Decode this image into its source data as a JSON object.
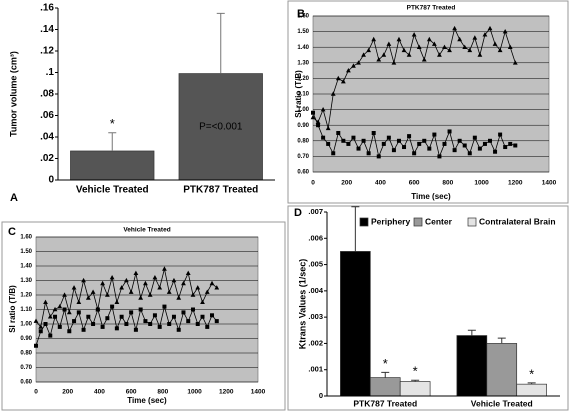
{
  "chart_data": [
    {
      "type": "bar",
      "label": "A",
      "ylabel": "Tumor volume (cm³)",
      "categories": [
        "Vehicle Treated",
        "PTK787 Treated"
      ],
      "series": [
        {
          "color": "#555555",
          "values": [
            0.027,
            0.099
          ],
          "errors": [
            0.017,
            0.056
          ]
        }
      ],
      "ylim": [
        0,
        0.16
      ],
      "yticks": [
        {
          "value": 0,
          "label": "0"
        },
        {
          "value": 0.02,
          "label": ".02"
        },
        {
          "value": 0.04,
          "label": ".04"
        },
        {
          "value": 0.06,
          "label": ".06"
        },
        {
          "value": 0.08,
          "label": ".08"
        },
        {
          "value": 0.1,
          "label": ".1"
        },
        {
          "value": 0.12,
          "label": ".12"
        },
        {
          "value": 0.14,
          "label": ".14"
        },
        {
          "value": 0.16,
          "label": ".16"
        }
      ],
      "annotations": [
        "*",
        "P=<0.001"
      ],
      "grid": false
    },
    {
      "type": "line",
      "label": "B",
      "title": "PTK787 Treated",
      "xlabel": "Time (sec)",
      "ylabel": "SI ratio (T/B)",
      "x": [
        0,
        30,
        60,
        90,
        120,
        150,
        180,
        210,
        240,
        270,
        300,
        330,
        360,
        390,
        420,
        450,
        480,
        510,
        540,
        570,
        600,
        630,
        660,
        690,
        720,
        750,
        780,
        810,
        840,
        870,
        900,
        930,
        960,
        990,
        1020,
        1050,
        1080,
        1110,
        1140,
        1170,
        1200
      ],
      "series": [
        {
          "color": "#000000",
          "marker": "triangle",
          "values": [
            0.95,
            0.92,
            1.0,
            0.88,
            1.1,
            1.2,
            1.18,
            1.25,
            1.28,
            1.3,
            1.35,
            1.38,
            1.45,
            1.32,
            1.35,
            1.42,
            1.3,
            1.45,
            1.38,
            1.35,
            1.48,
            1.4,
            1.32,
            1.45,
            1.42,
            1.35,
            1.4,
            1.38,
            1.52,
            1.45,
            1.4,
            1.38,
            1.46,
            1.35,
            1.48,
            1.52,
            1.42,
            1.38,
            1.5,
            1.4,
            1.3
          ]
        },
        {
          "color": "#000000",
          "marker": "square",
          "values": [
            0.98,
            0.9,
            0.82,
            0.78,
            0.72,
            0.85,
            0.8,
            0.78,
            0.82,
            0.75,
            0.8,
            0.72,
            0.85,
            0.7,
            0.78,
            0.82,
            0.74,
            0.8,
            0.76,
            0.83,
            0.72,
            0.78,
            0.8,
            0.75,
            0.84,
            0.7,
            0.78,
            0.86,
            0.74,
            0.8,
            0.77,
            0.72,
            0.82,
            0.75,
            0.78,
            0.8,
            0.73,
            0.84,
            0.76,
            0.78,
            0.77
          ]
        }
      ],
      "xlim": [
        0,
        1400
      ],
      "xticks": [
        0,
        200,
        400,
        600,
        800,
        1000,
        1200,
        1400
      ],
      "ylim": [
        0.6,
        1.6
      ],
      "yticks": [
        {
          "value": 0.6,
          "label": "0.60"
        },
        {
          "value": 0.7,
          "label": "0.70"
        },
        {
          "value": 0.8,
          "label": "0.80"
        },
        {
          "value": 0.9,
          "label": "0.90"
        },
        {
          "value": 1.0,
          "label": "1.00"
        },
        {
          "value": 1.1,
          "label": "1.10"
        },
        {
          "value": 1.2,
          "label": "1.20"
        },
        {
          "value": 1.3,
          "label": "1.30"
        },
        {
          "value": 1.4,
          "label": "1.40"
        },
        {
          "value": 1.5,
          "label": "1.50"
        },
        {
          "value": 1.6,
          "label": "1.60"
        }
      ],
      "grid": true,
      "background": "#c0c0c0"
    },
    {
      "type": "line",
      "label": "C",
      "title": "Vehicle Treated",
      "xlabel": "Time (sec)",
      "ylabel": "SI ratio (T/B)",
      "x": [
        0,
        30,
        60,
        90,
        120,
        150,
        180,
        210,
        240,
        270,
        300,
        330,
        360,
        390,
        420,
        450,
        480,
        510,
        540,
        570,
        600,
        630,
        660,
        690,
        720,
        750,
        780,
        810,
        840,
        870,
        900,
        930,
        960,
        990,
        1020,
        1050,
        1080,
        1110,
        1140
      ],
      "series": [
        {
          "color": "#000000",
          "marker": "triangle",
          "values": [
            1.02,
            0.98,
            1.15,
            1.05,
            1.1,
            1.12,
            1.2,
            1.08,
            1.25,
            1.15,
            1.3,
            1.18,
            1.22,
            1.1,
            1.28,
            1.2,
            1.32,
            1.15,
            1.25,
            1.3,
            1.22,
            1.35,
            1.18,
            1.28,
            1.2,
            1.32,
            1.25,
            1.38,
            1.22,
            1.3,
            1.18,
            1.28,
            1.35,
            1.2,
            1.25,
            1.15,
            1.22,
            1.28,
            1.25
          ]
        },
        {
          "color": "#000000",
          "marker": "square",
          "values": [
            0.85,
            0.95,
            1.0,
            0.92,
            1.05,
            0.98,
            1.1,
            0.95,
            1.02,
            1.08,
            0.96,
            1.05,
            1.0,
            1.1,
            0.98,
            1.04,
            1.12,
            0.97,
            1.05,
            1.0,
            1.08,
            0.96,
            1.1,
            1.02,
            1.0,
            1.06,
            0.98,
            1.12,
            1.0,
            1.05,
            0.96,
            1.08,
            1.02,
            1.1,
            1.0,
            1.05,
            0.98,
            1.06,
            1.02
          ]
        }
      ],
      "xlim": [
        0,
        1400
      ],
      "xticks": [
        0,
        200,
        400,
        600,
        800,
        1000,
        1200,
        1400
      ],
      "ylim": [
        0.6,
        1.6
      ],
      "yticks": [
        {
          "value": 0.6,
          "label": "0.60"
        },
        {
          "value": 0.7,
          "label": "0.70"
        },
        {
          "value": 0.8,
          "label": "0.80"
        },
        {
          "value": 0.9,
          "label": "0.90"
        },
        {
          "value": 1.0,
          "label": "1.00"
        },
        {
          "value": 1.1,
          "label": "1.10"
        },
        {
          "value": 1.2,
          "label": "1.20"
        },
        {
          "value": 1.3,
          "label": "1.30"
        },
        {
          "value": 1.4,
          "label": "1.40"
        },
        {
          "value": 1.5,
          "label": "1.50"
        },
        {
          "value": 1.6,
          "label": "1.60"
        }
      ],
      "grid": true,
      "background": "#c0c0c0"
    },
    {
      "type": "bar",
      "label": "D",
      "ylabel": "Ktrans Values (1/sec)",
      "categories": [
        "PTK787 Treated",
        "Vehicle Treated"
      ],
      "series": [
        {
          "name": "Periphery",
          "color": "#000000",
          "values": [
            0.0055,
            0.0023
          ],
          "errors": [
            0.0017,
            0.0002
          ]
        },
        {
          "name": "Center",
          "color": "#999999",
          "values": [
            0.0007,
            0.002
          ],
          "errors": [
            0.0002,
            0.0002
          ]
        },
        {
          "name": "Contralateral Brain",
          "color": "#e4e4e4",
          "values": [
            0.00055,
            0.00045
          ],
          "errors": [
            5e-05,
            5e-05
          ]
        }
      ],
      "ylim": [
        0,
        0.007
      ],
      "yticks": [
        {
          "value": 0,
          "label": "0"
        },
        {
          "value": 0.001,
          "label": ".001"
        },
        {
          "value": 0.002,
          "label": ".002"
        },
        {
          "value": 0.003,
          "label": ".003"
        },
        {
          "value": 0.004,
          "label": ".004"
        },
        {
          "value": 0.005,
          "label": ".005"
        },
        {
          "value": 0.006,
          "label": ".006"
        },
        {
          "value": 0.007,
          "label": ".007"
        }
      ],
      "annotations": [
        "*",
        "*",
        "*"
      ],
      "legend": "top",
      "grid": false
    }
  ]
}
